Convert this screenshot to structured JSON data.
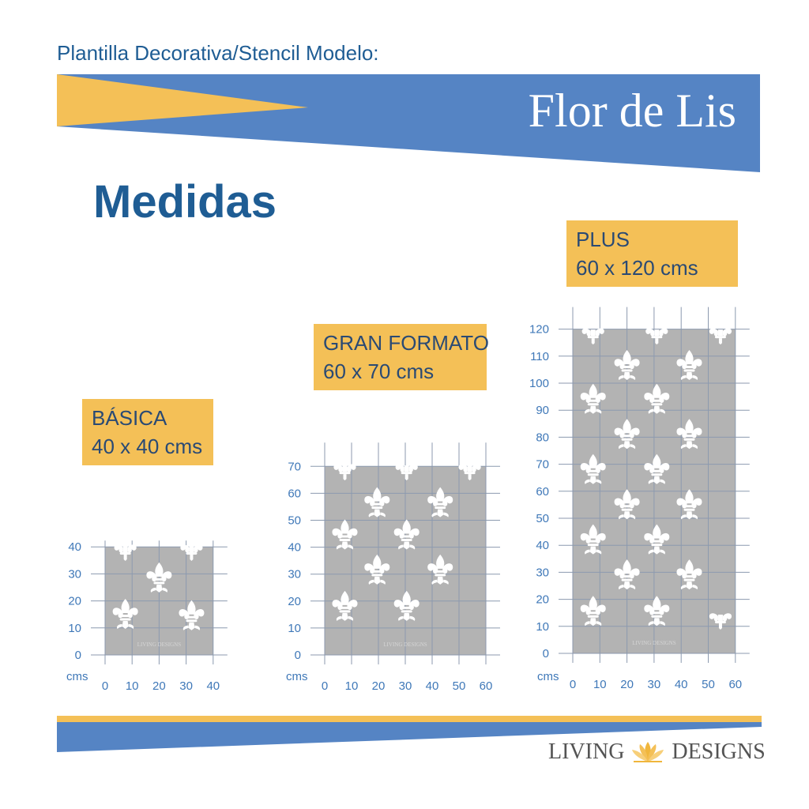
{
  "header": {
    "subtitle": "Plantilla Decorativa/Stencil Modelo:",
    "product_title": "Flor de Lis"
  },
  "section_title": "Medidas",
  "colors": {
    "blue": "#5584c4",
    "yellow": "#f4c057",
    "navy": "#1f5d94",
    "grid": "#8c9aaf",
    "panel": "#b3b3b3",
    "tick": "#3f78b8"
  },
  "sizes": [
    {
      "name": "BÁSICA",
      "dims": "40 x 40 cms",
      "unit": "cms",
      "width_cm": 40,
      "height_cm": 40,
      "x_ticks": [
        "0",
        "10",
        "20",
        "30",
        "40"
      ],
      "y_ticks": [
        "0",
        "10",
        "20",
        "30",
        "40"
      ],
      "watermark": "LIVING DESIGNS"
    },
    {
      "name": "GRAN FORMATO",
      "dims": "60 x 70 cms",
      "unit": "cms",
      "width_cm": 60,
      "height_cm": 70,
      "x_ticks": [
        "0",
        "10",
        "20",
        "30",
        "40",
        "50",
        "60"
      ],
      "y_ticks": [
        "0",
        "10",
        "20",
        "30",
        "40",
        "50",
        "60",
        "70"
      ],
      "watermark": "LIVING DESIGNS"
    },
    {
      "name": "PLUS",
      "dims": "60 x 120 cms",
      "unit": "cms",
      "width_cm": 60,
      "height_cm": 120,
      "x_ticks": [
        "0",
        "10",
        "20",
        "30",
        "40",
        "50",
        "60"
      ],
      "y_ticks": [
        "0",
        "10",
        "20",
        "30",
        "40",
        "50",
        "60",
        "70",
        "80",
        "90",
        "100",
        "110",
        "120"
      ],
      "watermark": "LIVING DESIGNS"
    }
  ],
  "brand": {
    "left": "LIVING",
    "right": "DESIGNS",
    "icon": "lotus-icon"
  }
}
